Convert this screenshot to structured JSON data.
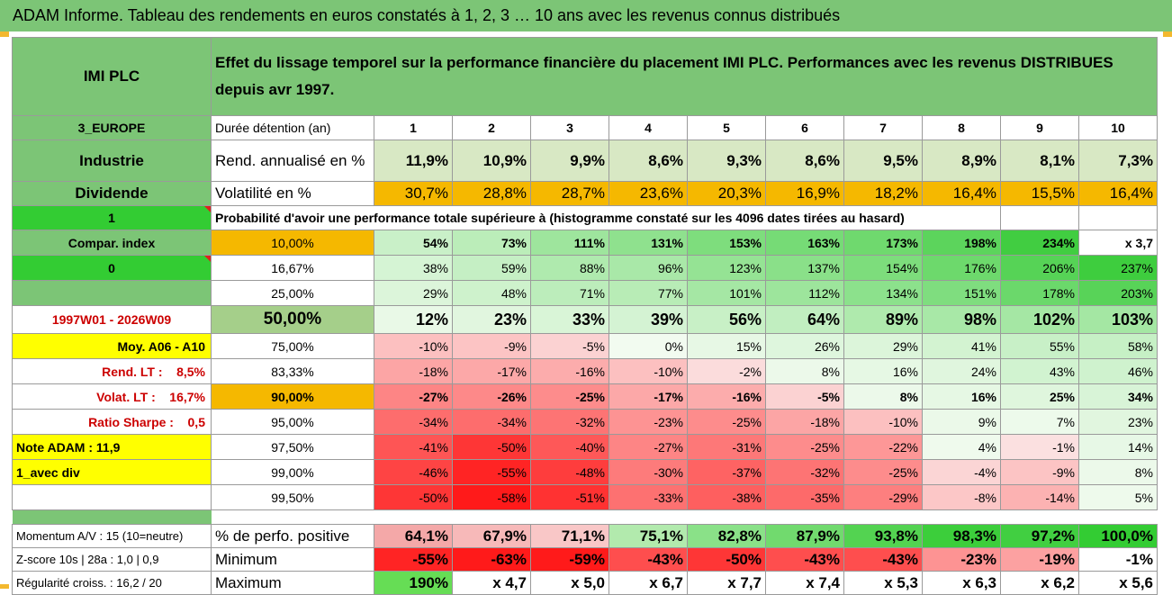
{
  "title": "ADAM Informe. Tableau des rendements en euros constatés à 1, 2, 3 … 10 ans avec les revenus connus distribués",
  "company": "IMI PLC",
  "description": "Effet du lissage temporel sur la performance financière du placement IMI PLC. Performances avec les revenus DISTRIBUES depuis avr 1997.",
  "header_row": {
    "left": "3_EUROPE",
    "label": "Durée détention (an)",
    "years": [
      "1",
      "2",
      "3",
      "4",
      "5",
      "6",
      "7",
      "8",
      "9",
      "10"
    ]
  },
  "rend_row": {
    "left": "Industrie",
    "label": "Rend. annualisé en %",
    "values": [
      "11,9%",
      "10,9%",
      "9,9%",
      "8,6%",
      "9,3%",
      "8,6%",
      "9,5%",
      "8,9%",
      "8,1%",
      "7,3%"
    ]
  },
  "vol_row": {
    "left": "Dividende",
    "label": "Volatilité en %",
    "values": [
      "30,7%",
      "28,8%",
      "28,7%",
      "23,6%",
      "20,3%",
      "16,9%",
      "18,2%",
      "16,4%",
      "15,5%",
      "16,4%"
    ]
  },
  "prob_row": {
    "left": "1",
    "label": "Probabilité d'avoir une performance totale supérieure à (histogramme constaté sur les 4096 dates tirées au hasard)"
  },
  "quantile_rows": [
    {
      "left": "Compar. index",
      "pct": "10,00%",
      "values": [
        "54%",
        "73%",
        "111%",
        "131%",
        "153%",
        "163%",
        "173%",
        "198%",
        "234%",
        "x 3,7"
      ]
    },
    {
      "left": "0",
      "pct": "16,67%",
      "values": [
        "38%",
        "59%",
        "88%",
        "96%",
        "123%",
        "137%",
        "154%",
        "176%",
        "206%",
        "237%"
      ]
    },
    {
      "left": "",
      "pct": "25,00%",
      "values": [
        "29%",
        "48%",
        "71%",
        "77%",
        "101%",
        "112%",
        "134%",
        "151%",
        "178%",
        "203%"
      ]
    },
    {
      "left": "1997W01 - 2026W09",
      "pct": "50,00%",
      "values": [
        "12%",
        "23%",
        "33%",
        "39%",
        "56%",
        "64%",
        "89%",
        "98%",
        "102%",
        "103%"
      ]
    },
    {
      "left": "Moy. A06 - A10",
      "pct": "75,00%",
      "values": [
        "-10%",
        "-9%",
        "-5%",
        "0%",
        "15%",
        "26%",
        "29%",
        "41%",
        "55%",
        "58%"
      ]
    },
    {
      "left": "Rend. LT :    8,5%",
      "pct": "83,33%",
      "values": [
        "-18%",
        "-17%",
        "-16%",
        "-10%",
        "-2%",
        "8%",
        "16%",
        "24%",
        "43%",
        "46%"
      ]
    },
    {
      "left": "Volat. LT :    16,7%",
      "pct": "90,00%",
      "values": [
        "-27%",
        "-26%",
        "-25%",
        "-17%",
        "-16%",
        "-5%",
        "8%",
        "16%",
        "25%",
        "34%"
      ]
    },
    {
      "left": "Ratio Sharpe :    0,5",
      "pct": "95,00%",
      "values": [
        "-34%",
        "-34%",
        "-32%",
        "-23%",
        "-25%",
        "-18%",
        "-10%",
        "9%",
        "7%",
        "23%"
      ]
    },
    {
      "left": "Note ADAM : 11,9",
      "pct": "97,50%",
      "values": [
        "-41%",
        "-50%",
        "-40%",
        "-27%",
        "-31%",
        "-25%",
        "-22%",
        "4%",
        "-1%",
        "14%"
      ]
    },
    {
      "left": "1_avec div",
      "pct": "99,00%",
      "values": [
        "-46%",
        "-55%",
        "-48%",
        "-30%",
        "-37%",
        "-32%",
        "-25%",
        "-4%",
        "-9%",
        "8%"
      ]
    },
    {
      "left": "",
      "pct": "99,50%",
      "values": [
        "-50%",
        "-58%",
        "-51%",
        "-33%",
        "-38%",
        "-35%",
        "-29%",
        "-8%",
        "-14%",
        "5%"
      ]
    }
  ],
  "bottom_rows": [
    {
      "left": "Momentum A/V : 15 (10=neutre)",
      "label": "% de perfo. positive",
      "values": [
        "64,1%",
        "67,9%",
        "71,1%",
        "75,1%",
        "82,8%",
        "87,9%",
        "93,8%",
        "98,3%",
        "97,2%",
        "100,0%"
      ]
    },
    {
      "left": "Z-score 10s | 28a : 1,0 | 0,9",
      "label": "Minimum",
      "values": [
        "-55%",
        "-63%",
        "-59%",
        "-43%",
        "-50%",
        "-43%",
        "-43%",
        "-23%",
        "-19%",
        "-1%"
      ]
    },
    {
      "left": "Régularité croiss. : 16,2 / 20",
      "label": "Maximum",
      "values": [
        "190%",
        "x 4,7",
        "x 5,0",
        "x 6,7",
        "x 7,7",
        "x 7,4",
        "x 5,3",
        "x 6,3",
        "x 6,2",
        "x 5,6"
      ]
    }
  ],
  "colors": {
    "green_label": "#7cc576",
    "bright_green": "#33cc33",
    "orange": "#f5b800",
    "yellow": "#ffff00",
    "red_text": "#cc0000",
    "rend_bg": "#d8e8c4"
  }
}
